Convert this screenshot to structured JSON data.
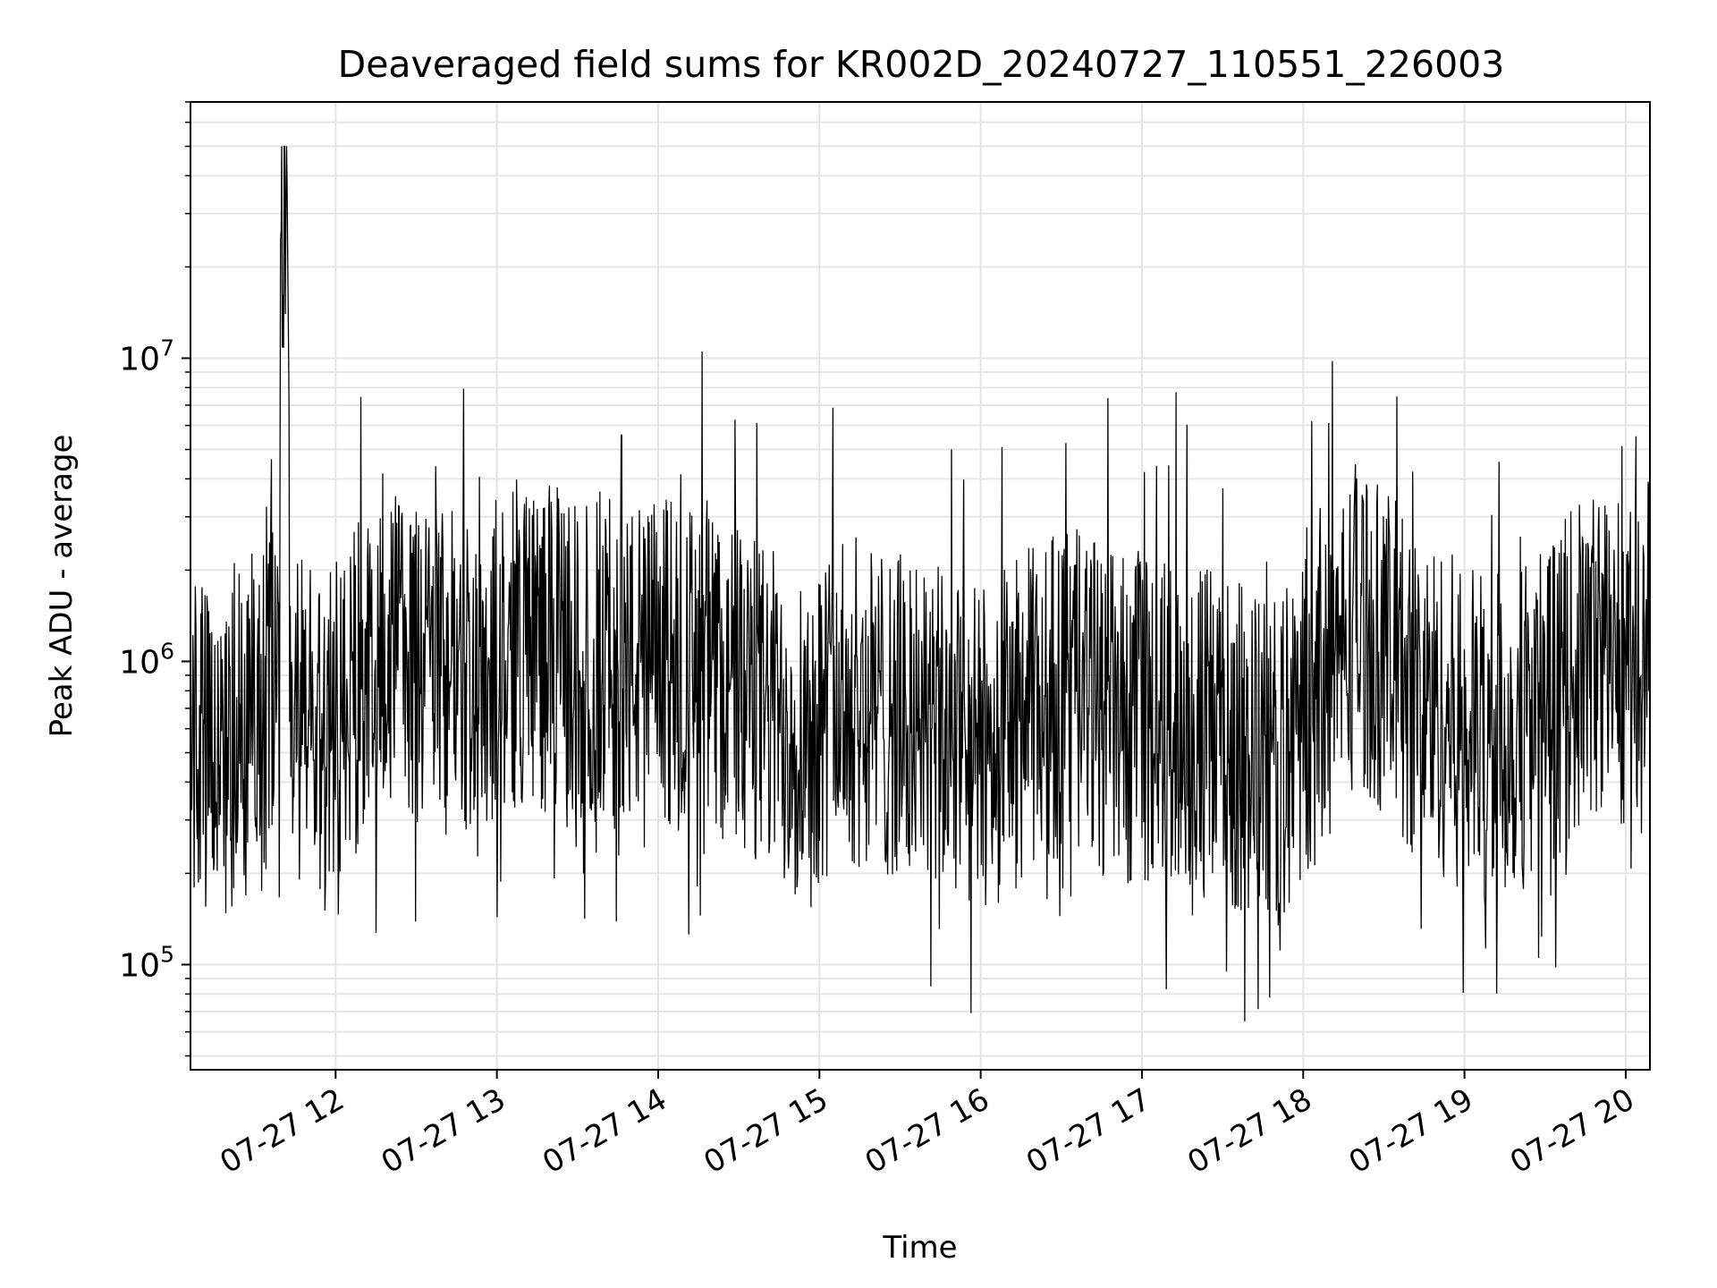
{
  "chart_data": {
    "type": "line",
    "title": "Deaveraged field sums for KR002D_20240727_110551_226003",
    "xlabel": "Time",
    "ylabel": "Peak ADU - average",
    "x_range": [
      "2024-07-27T11:06:00",
      "2024-07-27T20:09:00"
    ],
    "y_scale": "log",
    "ylim": [
      45000,
      70000000
    ],
    "grid": true,
    "x_ticks": [
      {
        "t": "2024-07-27T12:00:00",
        "label": "07-27 12"
      },
      {
        "t": "2024-07-27T13:00:00",
        "label": "07-27 13"
      },
      {
        "t": "2024-07-27T14:00:00",
        "label": "07-27 14"
      },
      {
        "t": "2024-07-27T15:00:00",
        "label": "07-27 15"
      },
      {
        "t": "2024-07-27T16:00:00",
        "label": "07-27 16"
      },
      {
        "t": "2024-07-27T17:00:00",
        "label": "07-27 17"
      },
      {
        "t": "2024-07-27T18:00:00",
        "label": "07-27 18"
      },
      {
        "t": "2024-07-27T19:00:00",
        "label": "07-27 19"
      },
      {
        "t": "2024-07-27T20:00:00",
        "label": "07-27 20"
      }
    ],
    "y_ticks": [
      {
        "value": 100000,
        "base": "10",
        "exp": "5"
      },
      {
        "value": 1000000,
        "base": "10",
        "exp": "6"
      },
      {
        "value": 10000000,
        "base": "10",
        "exp": "7"
      }
    ],
    "series_color": "#000000",
    "series": [
      {
        "x": [
          "2024-07-27T11:06:00",
          "2024-07-27T11:10:00",
          "2024-07-27T11:15:00",
          "2024-07-27T11:20:00",
          "2024-07-27T11:25:00",
          "2024-07-27T11:30:00",
          "2024-07-27T11:35:00",
          "2024-07-27T11:39:00",
          "2024-07-27T11:40:00",
          "2024-07-27T11:41:00",
          "2024-07-27T11:42:00",
          "2024-07-27T11:43:00",
          "2024-07-27T11:45:00",
          "2024-07-27T11:50:00",
          "2024-07-27T11:55:00",
          "2024-07-27T12:00:00",
          "2024-07-27T12:10:00",
          "2024-07-27T12:20:00",
          "2024-07-27T12:30:00",
          "2024-07-27T12:40:00",
          "2024-07-27T12:50:00",
          "2024-07-27T13:00:00",
          "2024-07-27T13:10:00",
          "2024-07-27T13:20:00",
          "2024-07-27T13:30:00",
          "2024-07-27T13:40:00",
          "2024-07-27T13:50:00",
          "2024-07-27T14:00:00",
          "2024-07-27T14:10:00",
          "2024-07-27T14:20:00",
          "2024-07-27T14:30:00",
          "2024-07-27T14:40:00",
          "2024-07-27T14:50:00",
          "2024-07-27T15:00:00",
          "2024-07-27T15:10:00",
          "2024-07-27T15:20:00",
          "2024-07-27T15:30:00",
          "2024-07-27T15:40:00",
          "2024-07-27T15:50:00",
          "2024-07-27T16:00:00",
          "2024-07-27T16:10:00",
          "2024-07-27T16:20:00",
          "2024-07-27T16:30:00",
          "2024-07-27T16:40:00",
          "2024-07-27T16:50:00",
          "2024-07-27T17:00:00",
          "2024-07-27T17:10:00",
          "2024-07-27T17:20:00",
          "2024-07-27T17:30:00",
          "2024-07-27T17:40:00",
          "2024-07-27T17:50:00",
          "2024-07-27T18:00:00",
          "2024-07-27T18:10:00",
          "2024-07-27T18:20:00",
          "2024-07-27T18:30:00",
          "2024-07-27T18:40:00",
          "2024-07-27T18:50:00",
          "2024-07-27T19:00:00",
          "2024-07-27T19:10:00",
          "2024-07-27T19:20:00",
          "2024-07-27T19:30:00",
          "2024-07-27T19:40:00",
          "2024-07-27T19:50:00",
          "2024-07-27T20:00:00",
          "2024-07-27T20:08:00"
        ],
        "y": [
          600000,
          500000,
          450000,
          500000,
          550000,
          700000,
          800000,
          900000,
          25000000,
          30000000,
          20000000,
          900000,
          700000,
          600000,
          550000,
          600000,
          900000,
          1100000,
          1050000,
          950000,
          900000,
          1000000,
          1200000,
          1100000,
          950000,
          1000000,
          950000,
          1000000,
          950000,
          900000,
          800000,
          700000,
          600000,
          650000,
          750000,
          700000,
          650000,
          600000,
          550000,
          500000,
          600000,
          700000,
          800000,
          750000,
          650000,
          600000,
          650000,
          600000,
          550000,
          500000,
          450000,
          650000,
          900000,
          1400000,
          1100000,
          800000,
          700000,
          600000,
          550000,
          600000,
          700000,
          900000,
          1100000,
          1000000,
          1200000
        ],
        "fluctuation": {
          "typical_low": 200000,
          "typical_high": 2500000,
          "min_visible": 62000,
          "max_visible": 50000000
        }
      }
    ]
  }
}
